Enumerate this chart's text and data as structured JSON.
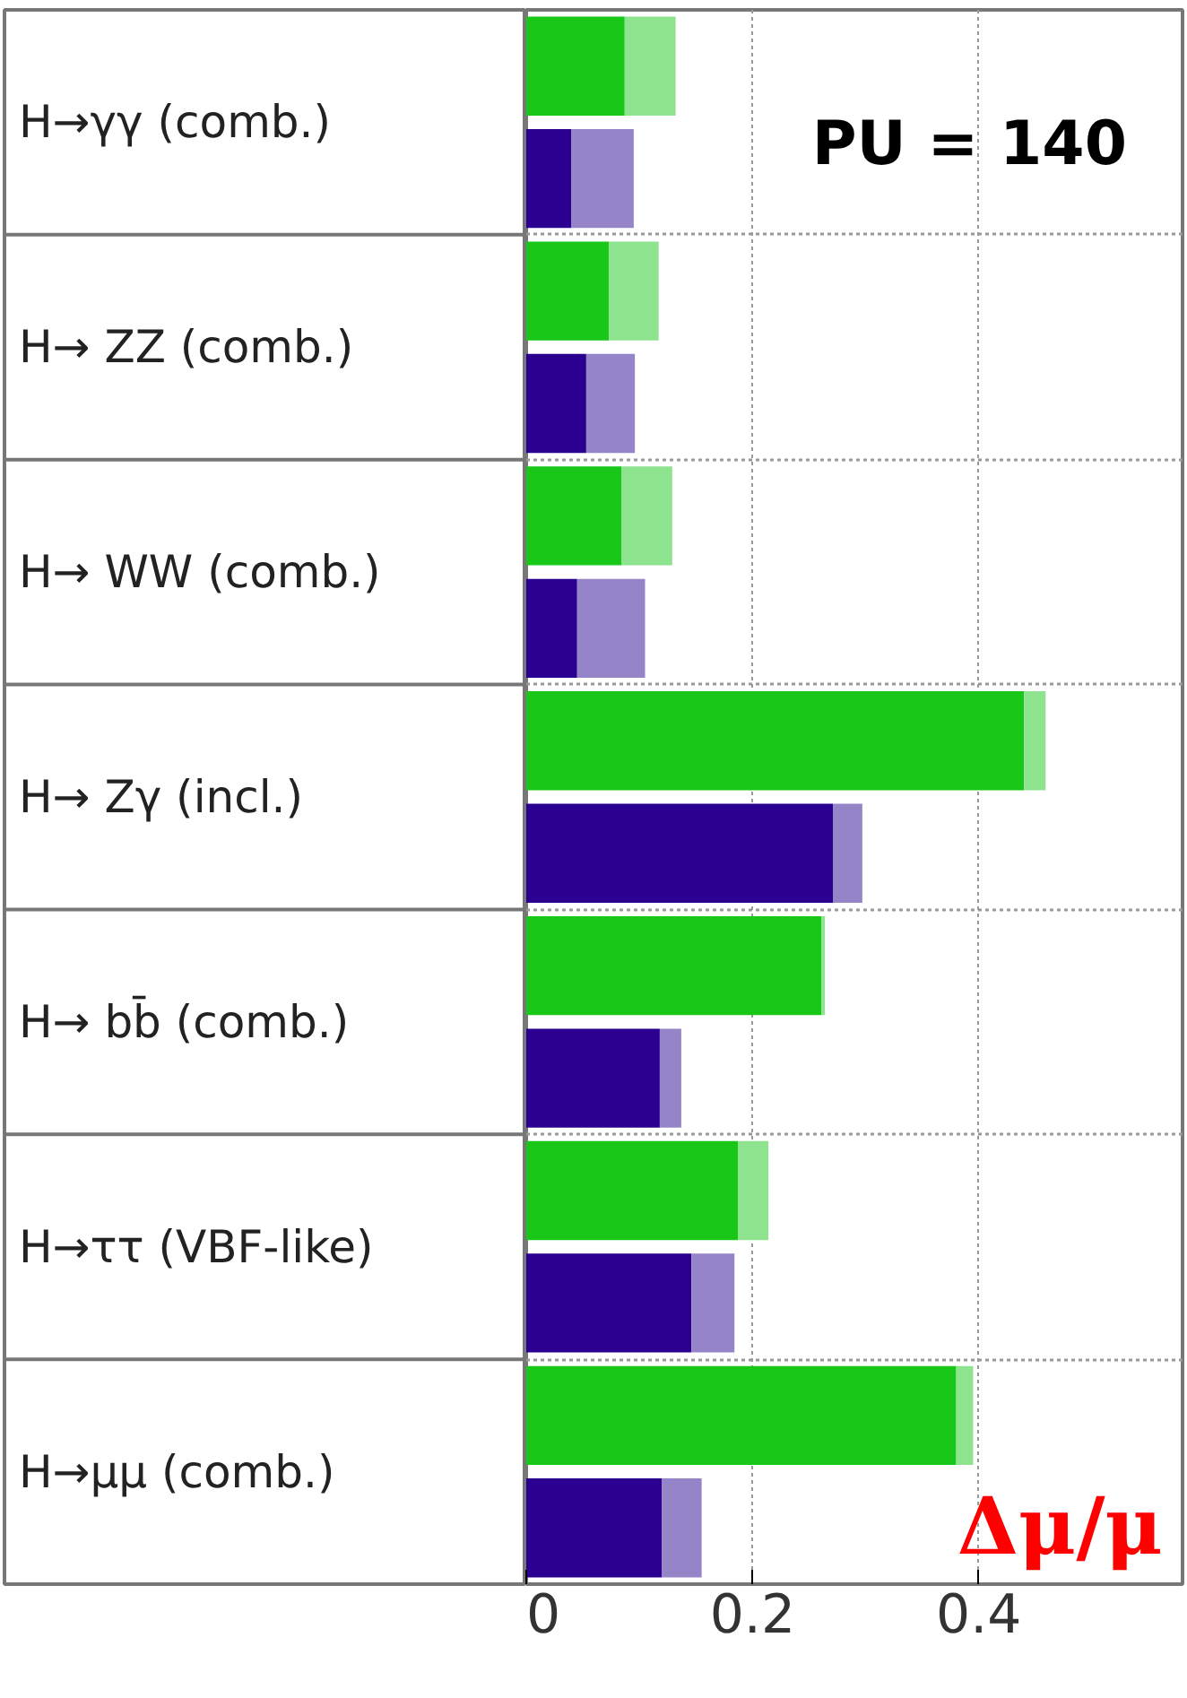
{
  "chart_data": {
    "type": "bar",
    "orientation": "horizontal",
    "stacked": true,
    "categories": [
      "H→γγ   (comb.)",
      null,
      "H→ ZZ   (comb.)",
      null,
      "H→ WW (comb.)",
      null,
      "H→ Zγ      (incl.)",
      null,
      "H→ bb̄   (comb.)",
      null,
      "H→ττ  (VBF-like)",
      null,
      "H→μμ    (comb.)",
      null
    ],
    "series": [
      {
        "colors": [
          "#19c719",
          "#2b0090",
          "#19c719",
          "#2b0090",
          "#19c719",
          "#2b0090",
          "#19c719",
          "#2b0090",
          "#19c719",
          "#2b0090",
          "#19c719",
          "#2b0090",
          "#19c719",
          "#2b0090"
        ],
        "values": [
          0.087,
          0.04,
          0.073,
          0.053,
          0.084,
          0.045,
          0.44,
          0.271,
          0.261,
          0.118,
          0.187,
          0.146,
          0.38,
          0.12
        ]
      },
      {
        "colors": [
          "#8ee38e",
          "#9585c8",
          "#8ee38e",
          "#9585c8",
          "#8ee38e",
          "#9585c8",
          "#8ee38e",
          "#9585c8",
          "#8ee38e",
          "#9585c8",
          "#8ee38e",
          "#9585c8",
          "#8ee38e",
          "#9585c8"
        ],
        "values": [
          0.045,
          0.055,
          0.044,
          0.043,
          0.045,
          0.06,
          0.019,
          0.026,
          0.003,
          0.019,
          0.027,
          0.038,
          0.015,
          0.035
        ]
      }
    ],
    "xlim": [
      0,
      0.58
    ],
    "xticks": [
      0,
      0.2,
      0.4
    ],
    "grid": true,
    "xlabel": "Δμ/μ",
    "annotations": [
      "PU = 140"
    ]
  }
}
